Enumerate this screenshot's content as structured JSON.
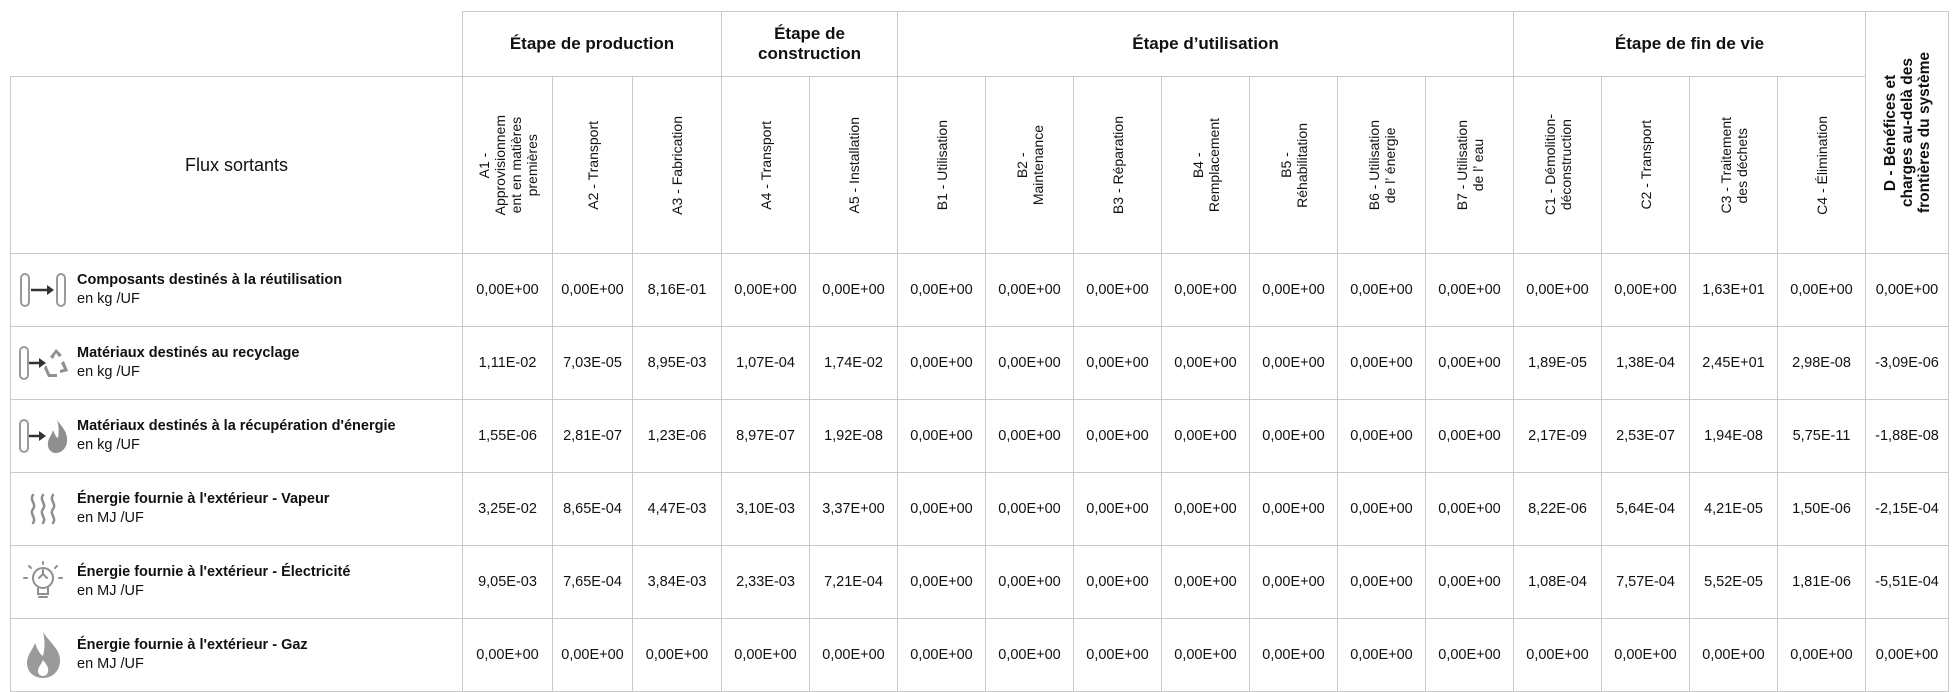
{
  "header": {
    "flux_title": "Flux sortants",
    "stages": [
      {
        "label": "Étape de production"
      },
      {
        "label": "Étape de\nconstruction"
      },
      {
        "label": "Étape d’utilisation"
      },
      {
        "label": "Étape de fin de vie"
      }
    ],
    "modules": [
      "A1 -\nApprovisionnem\nent en matières\npremières",
      "A2 - Transport",
      "A3 - Fabrication",
      "A4 - Transport",
      "A5 - Installation",
      "B1 - Utilisation",
      "B2 -\nMaintenance",
      "B3 - Réparation",
      "B4 -\nRemplacement",
      "B5 -\nRéhabilitation",
      "B6 - Utilisation\nde l’ énergie",
      "B7 - Utilisation\nde l’ eau",
      "C1 - Démolition-\ndéconstruction",
      "C2 - Transport",
      "C3 - Traitement\ndes déchets",
      "C4 - Élimination"
    ],
    "d_label": "D - Bénéfices et\ncharges au-delà des\nfrontières du système"
  },
  "rows": [
    {
      "name": "Composants destinés à la réutilisation",
      "unit": "en kg /UF",
      "icon": "reuse-icon",
      "values": [
        "0,00E+00",
        "0,00E+00",
        "8,16E-01",
        "0,00E+00",
        "0,00E+00",
        "0,00E+00",
        "0,00E+00",
        "0,00E+00",
        "0,00E+00",
        "0,00E+00",
        "0,00E+00",
        "0,00E+00",
        "0,00E+00",
        "0,00E+00",
        "1,63E+01",
        "0,00E+00",
        "0,00E+00"
      ]
    },
    {
      "name": "Matériaux destinés au recyclage",
      "unit": "en kg /UF",
      "icon": "recycle-icon",
      "values": [
        "1,11E-02",
        "7,03E-05",
        "8,95E-03",
        "1,07E-04",
        "1,74E-02",
        "0,00E+00",
        "0,00E+00",
        "0,00E+00",
        "0,00E+00",
        "0,00E+00",
        "0,00E+00",
        "0,00E+00",
        "1,89E-05",
        "1,38E-04",
        "2,45E+01",
        "2,98E-08",
        "-3,09E-06"
      ]
    },
    {
      "name": "Matériaux destinés à la récupération d'énergie",
      "unit": "en kg /UF",
      "icon": "energy-recovery-icon",
      "values": [
        "1,55E-06",
        "2,81E-07",
        "1,23E-06",
        "8,97E-07",
        "1,92E-08",
        "0,00E+00",
        "0,00E+00",
        "0,00E+00",
        "0,00E+00",
        "0,00E+00",
        "0,00E+00",
        "0,00E+00",
        "2,17E-09",
        "2,53E-07",
        "1,94E-08",
        "5,75E-11",
        "-1,88E-08"
      ]
    },
    {
      "name": "Énergie fournie à l'extérieur - Vapeur",
      "unit": "en MJ /UF",
      "icon": "steam-icon",
      "values": [
        "3,25E-02",
        "8,65E-04",
        "4,47E-03",
        "3,10E-03",
        "3,37E+00",
        "0,00E+00",
        "0,00E+00",
        "0,00E+00",
        "0,00E+00",
        "0,00E+00",
        "0,00E+00",
        "0,00E+00",
        "8,22E-06",
        "5,64E-04",
        "4,21E-05",
        "1,50E-06",
        "-2,15E-04"
      ]
    },
    {
      "name": "Énergie fournie à l'extérieur - Électricité",
      "unit": "en MJ /UF",
      "icon": "lightbulb-icon",
      "values": [
        "9,05E-03",
        "7,65E-04",
        "3,84E-03",
        "2,33E-03",
        "7,21E-04",
        "0,00E+00",
        "0,00E+00",
        "0,00E+00",
        "0,00E+00",
        "0,00E+00",
        "0,00E+00",
        "0,00E+00",
        "1,08E-04",
        "7,57E-04",
        "5,52E-05",
        "1,81E-06",
        "-5,51E-04"
      ]
    },
    {
      "name": "Énergie fournie à l'extérieur - Gaz",
      "unit": "en MJ /UF",
      "icon": "flame-icon",
      "values": [
        "0,00E+00",
        "0,00E+00",
        "0,00E+00",
        "0,00E+00",
        "0,00E+00",
        "0,00E+00",
        "0,00E+00",
        "0,00E+00",
        "0,00E+00",
        "0,00E+00",
        "0,00E+00",
        "0,00E+00",
        "0,00E+00",
        "0,00E+00",
        "0,00E+00",
        "0,00E+00",
        "0,00E+00"
      ]
    }
  ]
}
